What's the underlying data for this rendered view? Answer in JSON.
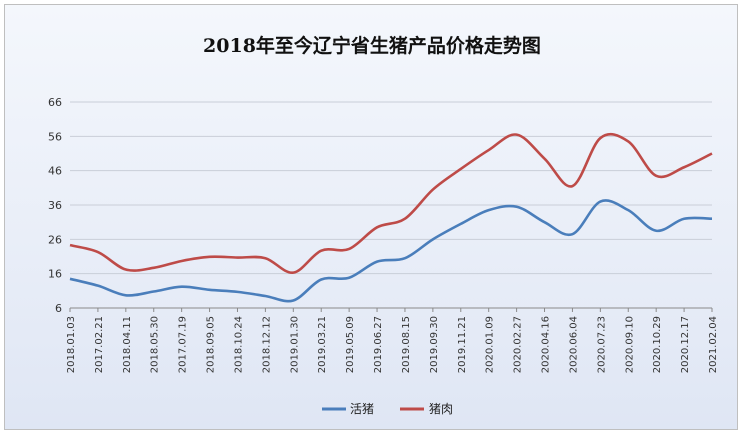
{
  "chart_data": {
    "type": "line",
    "title": "2018年至今辽宁省生猪产品价格走势图",
    "xlabel": "",
    "ylabel": "",
    "ylim": [
      6,
      66
    ],
    "yticks": [
      6,
      16,
      26,
      36,
      46,
      56,
      66
    ],
    "grid": "horizontal",
    "legend_position": "bottom",
    "x": [
      "2018.01.03",
      "2017.02.21",
      "2018.04.11",
      "2018.05.30",
      "2017.07.19",
      "2018.09.05",
      "2018.10.24",
      "2018.12.12",
      "2019.01.30",
      "2019.03.21",
      "2019.05.09",
      "2019.06.27",
      "2019.08.15",
      "2019.09.30",
      "2019.11.21",
      "2020.01.09",
      "2020.02.27",
      "2020.04.16",
      "2020.06.04",
      "2020.07.23",
      "2020.09.10",
      "2020.10.29",
      "2020.12.17",
      "2021.02.04"
    ],
    "series": [
      {
        "name": "活猪",
        "color": "#4a7ebb",
        "values": [
          14.5,
          12.5,
          9.7,
          10.8,
          12.2,
          11.3,
          10.7,
          9.5,
          8.2,
          14.3,
          14.8,
          19.5,
          20.5,
          26,
          30.5,
          34.5,
          35.5,
          31,
          27.5,
          37,
          34.5,
          28.5,
          32,
          32
        ]
      },
      {
        "name": "猪肉",
        "color": "#be4b48",
        "values": [
          24.3,
          22.3,
          17.2,
          17.7,
          19.7,
          20.9,
          20.7,
          20.5,
          16.3,
          22.7,
          23.2,
          29.5,
          32,
          40.5,
          46.5,
          52,
          56.5,
          49.5,
          41.5,
          55.5,
          54.5,
          44.5,
          47,
          51
        ]
      }
    ]
  }
}
